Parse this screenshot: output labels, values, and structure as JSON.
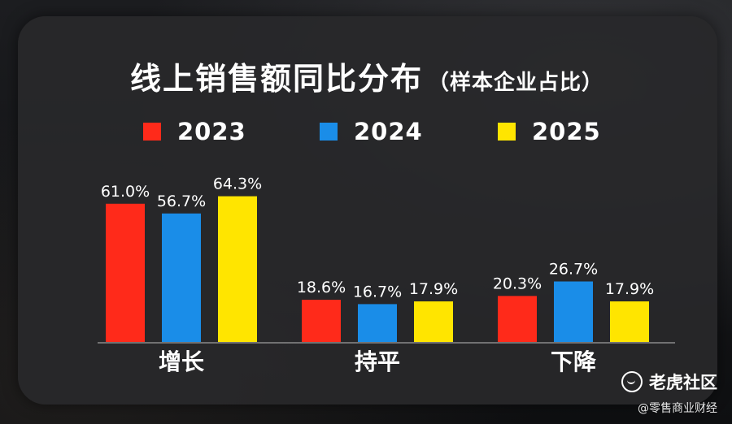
{
  "title": "线上销售额同比分布",
  "subtitle": "（样本企业占比）",
  "legend": [
    {
      "label": "2023",
      "color": "#ff2a1a"
    },
    {
      "label": "2024",
      "color": "#1a8de8"
    },
    {
      "label": "2025",
      "color": "#ffe500"
    }
  ],
  "watermark": "老虎社区",
  "credit": "@零售商业财经",
  "chart_data": {
    "type": "bar",
    "title": "线上销售额同比分布",
    "subtitle": "（样本企业占比）",
    "categories": [
      "增长",
      "持平",
      "下降"
    ],
    "series": [
      {
        "name": "2023",
        "color": "#ff2a1a",
        "values": [
          61.0,
          18.6,
          20.3
        ],
        "labels": [
          "61.0%",
          "18.6%",
          "20.3%"
        ]
      },
      {
        "name": "2024",
        "color": "#1a8de8",
        "values": [
          56.7,
          16.7,
          26.7
        ],
        "labels": [
          "56.7%",
          "16.7%",
          "26.7%"
        ]
      },
      {
        "name": "2025",
        "color": "#ffe500",
        "values": [
          64.3,
          17.9,
          17.9
        ],
        "labels": [
          "64.3%",
          "17.9%",
          "17.9%"
        ]
      }
    ],
    "unit": "%",
    "legend_position": "top",
    "grid": false
  }
}
